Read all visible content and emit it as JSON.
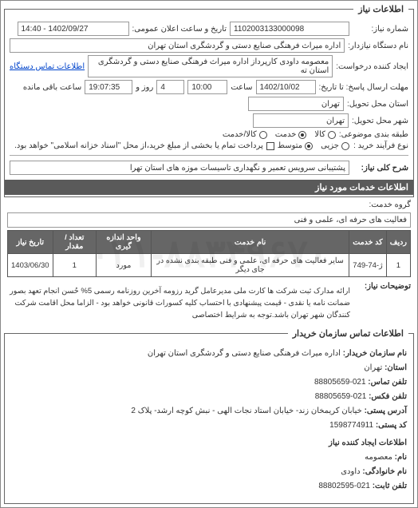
{
  "colors": {
    "border": "#666666",
    "header_bg": "#5a5a5a",
    "header_fg": "#ffffff",
    "input_border": "#999999",
    "text": "#333333",
    "watermark": "rgba(0,0,0,0.06)"
  },
  "watermark": "۰۲۱-۸۸۳۴۹۶۷۰",
  "panel1": {
    "legend": "اطلاعات نیاز",
    "labels": {
      "req_no": "شماره نیاز:",
      "pub_date": "تاریخ و ساعت اعلان عمومی:",
      "org_name": "نام دستگاه نیازدار:",
      "requester": "ایجاد کننده درخواست:",
      "contact_link": "اطلاعات تماس دستگاه",
      "deadline": "مهلت ارسال پاسخ: تا تاریخ:",
      "time": "ساعت",
      "and": "روز و",
      "remain": "ساعت باقی مانده",
      "delivery_prov": "استان محل تحویل:",
      "delivery_city": "شهر محل تحویل:",
      "cat": "طبقه بندی موضوعی:",
      "goods": "کالا",
      "service": "خدمت",
      "goods_service": "کالا/خدمت",
      "buy_type": "نوع فرآیند خرید :",
      "small": "جزیی",
      "medium": "متوسط",
      "pay_note": "پرداخت تمام یا بخشی از مبلغ خرید،از محل \"اسناد خزانه اسلامی\" خواهد بود.",
      "title": "شرح کلی نیاز:"
    },
    "req_no": "1102003133000098",
    "pub_date": "14:40 - 1402/09/27",
    "org_name": "اداره میراث فرهنگی  صنایع دستی و گردشگری استان تهران",
    "requester": "معصومه داودی کارپرداز اداره میراث فرهنگی  صنایع دستی و گردشگری استان ته",
    "deadline_date": "1402/10/02",
    "deadline_time": "10:00",
    "remain_days": "4",
    "remain_time": "19:07:35",
    "province": "تهران",
    "city": "تهران",
    "cat_service_checked": true,
    "buy_medium_checked": true,
    "title_text": "پشتیبانی سرویس تعمیر و نگهداری تاسیسات موزه های استان تهرا"
  },
  "services": {
    "hdr": "اطلاعات خدمات مورد نیاز",
    "group_label": "گروه خدمت:",
    "group_value": "فعالیت های حرفه ای، علمی و فنی",
    "table": {
      "columns": [
        "ردیف",
        "کد خدمت",
        "نام خدمت",
        "واحد اندازه گیری",
        "تعداد / مقدار",
        "تاریخ نیاز"
      ],
      "rows": [
        [
          "1",
          "ژ-74-749",
          "سایر فعالیت های حرفه ای، علمی و فنی طبقه بندی نشده در جای دیگر",
          "مورد",
          "1",
          "1403/06/30"
        ]
      ]
    },
    "explain_label": "توضیحات نیاز:",
    "explain_text": "ارائه مدارک ثبت شرکت ها کارت ملی مدیرعامل گرید رزومه آخرین روزنامه رسمی 5% حُسن انجام تعهد بصور ضمانت نامه یا نقدی - قیمت پیشنهادی با احتساب کلیه کسورات قانونی خواهد بود - الزاما محل اقامت شرکت کنندگان شهر تهران باشد.توجه به شرایط اختصاصی"
  },
  "contact": {
    "hdr": "اطلاعات تماس سازمان خریدار",
    "labels": {
      "org": "نام سازمان خریدار:",
      "prov": "استان:",
      "tel": "تلفن تماس:",
      "fax": "تلفن فکس:",
      "addr": "آدرس پستی:",
      "postal": "کد پستی:",
      "creator": "اطلاعات ایجاد کننده نیاز",
      "name": "نام:",
      "family": "نام خانوادگی:",
      "phone": "تلفن ثابت:"
    },
    "org": "اداره میراث فرهنگی صنایع دستی و گردشگری استان تهران",
    "prov": "تهران",
    "tel": "021-88805659",
    "fax": "021-88805659",
    "addr": "خیابان کریمخان زند- خیابان استاد نجات الهی - نبش کوچه ارشد- پلاک 2",
    "postal": "1598774911",
    "name": "معصومه",
    "family": "داودی",
    "phone": "021-88802595"
  }
}
